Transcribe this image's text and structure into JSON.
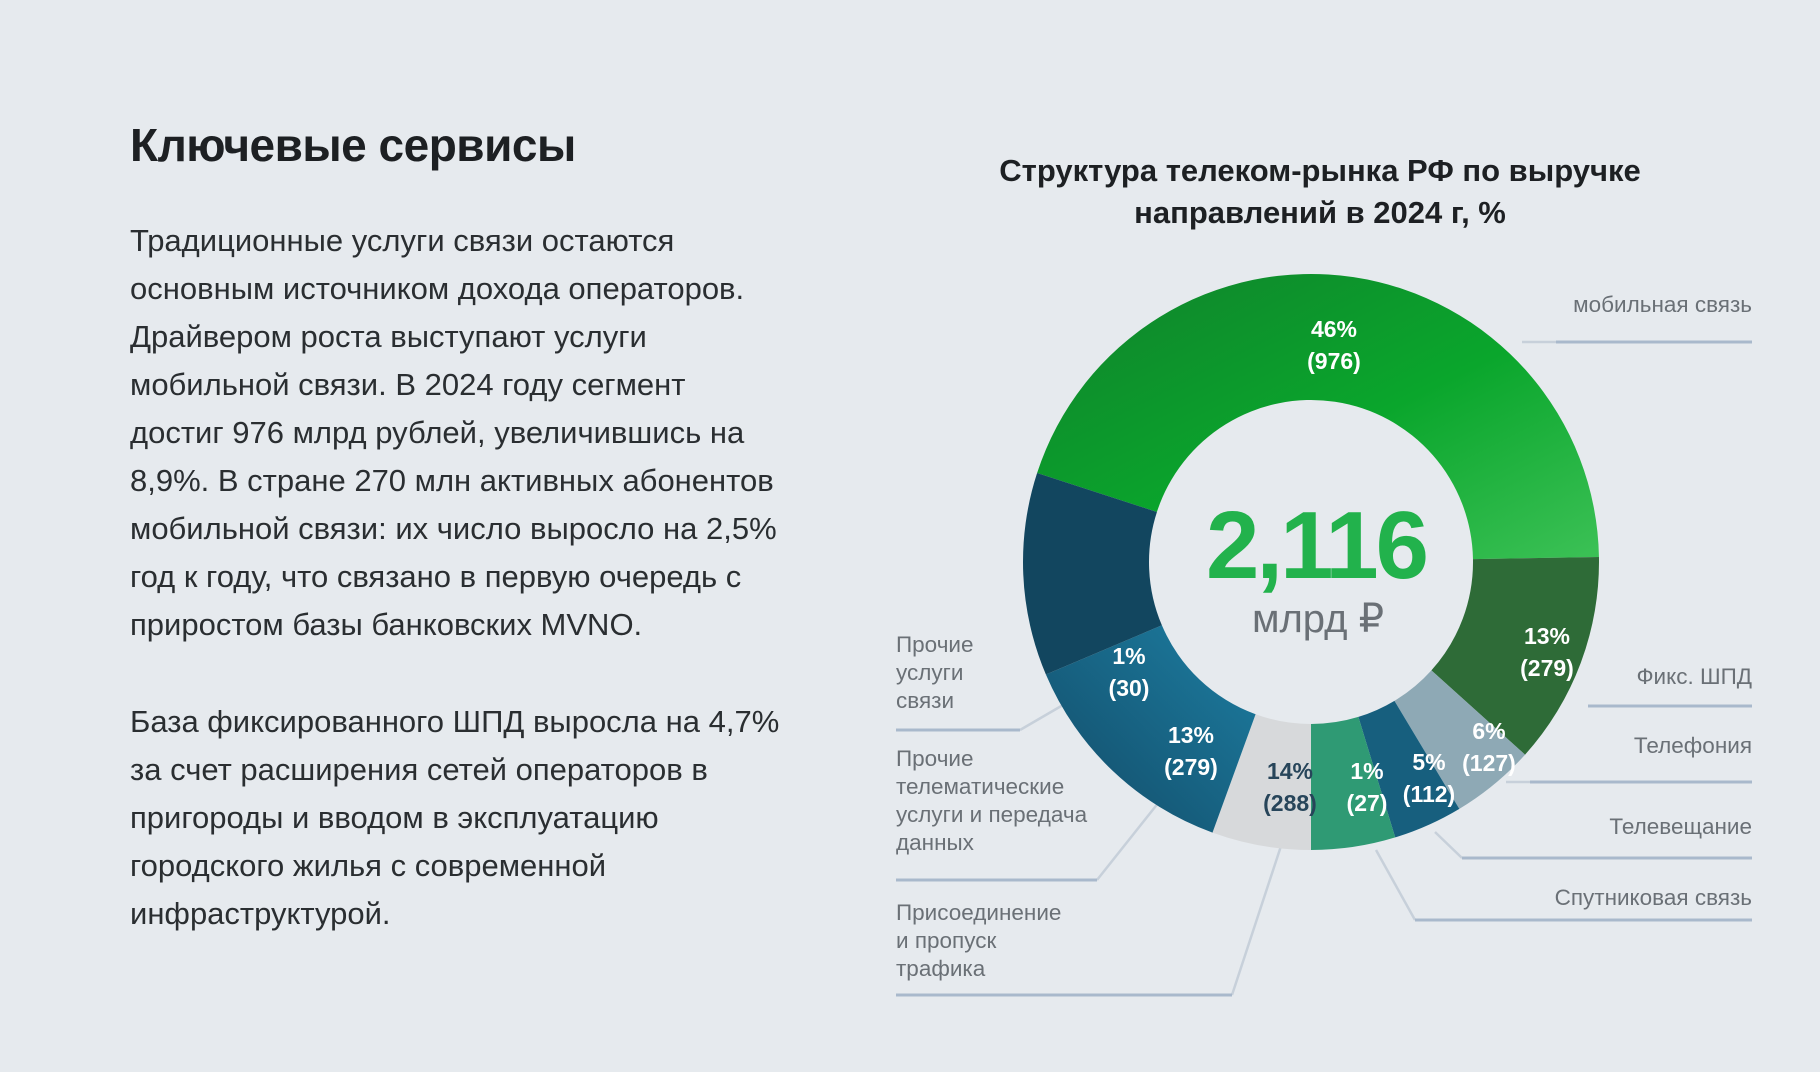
{
  "page": {
    "title": "Ключевые сервисы",
    "paragraphs": [
      [
        "Традиционные услуги связи остаются",
        "основным источником дохода операторов.",
        "Драйвером роста выступают услуги",
        "мобильной связи. В 2024 году сегмент",
        "достиг 976 млрд рублей, увеличившись на",
        "8,9%. В стране 270 млн активных абонентов",
        "мобильной связи: их число выросло на 2,5%",
        "год к году, что связано в первую очередь с",
        "приростом базы банковских MVNO."
      ],
      [
        "База фиксированного ШПД выросла на 4,7%",
        "за счет расширения сетей операторов в",
        "пригороды и вводом в эксплуатацию",
        "городского жилья с современной",
        "инфраструктурой."
      ]
    ]
  },
  "chart_data": {
    "type": "pie",
    "title": "Структура телеком-рынка РФ по выручке направлений в 2024 г, %",
    "title_lines": [
      "Структура телеком-рынка РФ по выручке",
      "направлений в 2024 г, %"
    ],
    "donut": true,
    "center": {
      "value": "2,116",
      "unit": "млрд ₽"
    },
    "legend": "none",
    "segments": [
      {
        "label": [
          "мобильная связь"
        ],
        "percent": 46,
        "value": 976,
        "percent_text": "46%",
        "value_text": "(976)",
        "color": "#0da62f",
        "color_dark": "#10812c",
        "color_light": "#3cc156"
      },
      {
        "label": [
          "Фикс. ШПД"
        ],
        "percent": 13,
        "value": 279,
        "percent_text": "13%",
        "value_text": "(279)",
        "color": "#2e6b37"
      },
      {
        "label": [
          "Телефония"
        ],
        "percent": 6,
        "value": 127,
        "percent_text": "6%",
        "value_text": "(127)",
        "color": "#8ea9b5"
      },
      {
        "label": [
          "Телевещание"
        ],
        "percent": 5,
        "value": 112,
        "percent_text": "5%",
        "value_text": "(112)",
        "color": "#175f7e"
      },
      {
        "label": [
          "Спутниковая связь"
        ],
        "percent": 1,
        "value": 27,
        "percent_text": "1%",
        "value_text": "(27)",
        "color": "#2f9a74"
      },
      {
        "label": [
          "Присоединение",
          "и пропуск",
          "трафика"
        ],
        "percent": 14,
        "value": 288,
        "percent_text": "14%",
        "value_text": "(288)",
        "color": "#d7d9db"
      },
      {
        "label": [
          "Прочие",
          "телематические",
          "услуги и передача",
          "данных"
        ],
        "percent": 13,
        "value": 279,
        "percent_text": "13%",
        "value_text": "(279)",
        "color": "#186d8d"
      },
      {
        "label": [
          "Прочие",
          "услуги",
          "связи"
        ],
        "percent": 1,
        "value": 30,
        "percent_text": "1%",
        "value_text": "(30)",
        "color": "#12465f"
      }
    ]
  }
}
